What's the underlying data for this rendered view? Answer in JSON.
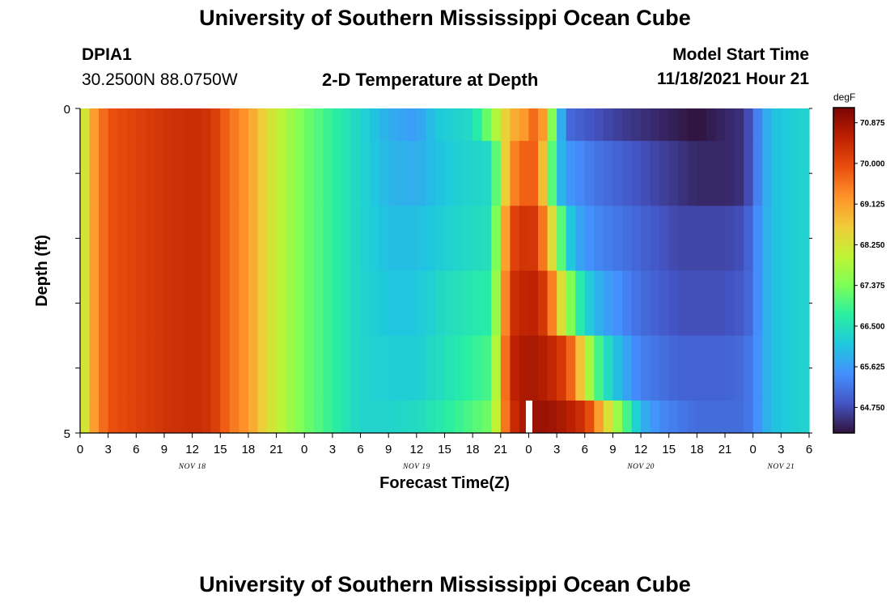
{
  "header": {
    "title": "University of Southern Mississippi Ocean Cube",
    "station_id": "DPIA1",
    "station_coords": "30.2500N  88.0750W",
    "plot_title": "2-D Temperature at Depth",
    "model_start_label": "Model Start Time",
    "model_start_value": "11/18/2021 Hour 21"
  },
  "footer": {
    "title": "University of Southern Mississippi Ocean Cube"
  },
  "chart_data": {
    "type": "heatmap",
    "title": "2-D Temperature at Depth",
    "xlabel": "Forecast Time(Z)",
    "ylabel": "Depth (ft)",
    "ylim": [
      0,
      5
    ],
    "y_tick_labels": [
      "0",
      "5"
    ],
    "x_tick_labels": [
      "0",
      "3",
      "6",
      "9",
      "12",
      "15",
      "18",
      "21",
      "0",
      "3",
      "6",
      "9",
      "12",
      "15",
      "18",
      "21",
      "0",
      "3",
      "6",
      "9",
      "12",
      "15",
      "18",
      "21",
      "0",
      "3",
      "6"
    ],
    "date_labels": [
      "NOV 18",
      "NOV 19",
      "NOV 20",
      "NOV 21"
    ],
    "x_range_hours": [
      0,
      78
    ],
    "colorbar": {
      "unit": "degF",
      "ticks": [
        "70.875",
        "70.000",
        "69.125",
        "68.250",
        "67.375",
        "66.500",
        "65.625",
        "64.750"
      ],
      "vmin": 64.2,
      "vmax": 71.2,
      "colors": [
        "#30123b",
        "#4454c4",
        "#4490fe",
        "#1fc8de",
        "#29efa2",
        "#7dff56",
        "#c1f334",
        "#f1ca3a",
        "#fe922a",
        "#ea4e0d",
        "#be2102",
        "#7a0403"
      ]
    },
    "depth_layers": [
      {
        "top": 0,
        "bottom": 0.5,
        "profile": [
          [
            0,
            67.6
          ],
          [
            1,
            68.9
          ],
          [
            3,
            69.9
          ],
          [
            6,
            70.1
          ],
          [
            9,
            70.3
          ],
          [
            12,
            70.4
          ],
          [
            14,
            70.3
          ],
          [
            16,
            69.6
          ],
          [
            18,
            69.2
          ],
          [
            20,
            68.4
          ],
          [
            22,
            67.8
          ],
          [
            24,
            67.3
          ],
          [
            27,
            66.8
          ],
          [
            30,
            66.3
          ],
          [
            33,
            65.8
          ],
          [
            36,
            65.6
          ],
          [
            38,
            66.1
          ],
          [
            42,
            66.4
          ],
          [
            44,
            67.5
          ],
          [
            46,
            68.9
          ],
          [
            48,
            69.3
          ],
          [
            49,
            70.0
          ],
          [
            50,
            68.4
          ],
          [
            51,
            66.5
          ],
          [
            52,
            65.1
          ],
          [
            54,
            64.9
          ],
          [
            58,
            64.6
          ],
          [
            62,
            64.4
          ],
          [
            66,
            64.2
          ],
          [
            69,
            64.4
          ],
          [
            71,
            64.5
          ],
          [
            72,
            65.0
          ],
          [
            73,
            65.6
          ],
          [
            74,
            66.0
          ],
          [
            76,
            66.2
          ],
          [
            78,
            66.3
          ]
        ]
      },
      {
        "top": 0.5,
        "bottom": 1.5,
        "profile": [
          [
            0,
            67.6
          ],
          [
            1,
            68.9
          ],
          [
            3,
            69.9
          ],
          [
            6,
            70.1
          ],
          [
            9,
            70.3
          ],
          [
            12,
            70.4
          ],
          [
            14,
            70.3
          ],
          [
            16,
            69.6
          ],
          [
            18,
            69.2
          ],
          [
            20,
            68.4
          ],
          [
            22,
            67.8
          ],
          [
            24,
            67.3
          ],
          [
            27,
            66.8
          ],
          [
            30,
            66.3
          ],
          [
            33,
            65.9
          ],
          [
            36,
            65.8
          ],
          [
            40,
            66.2
          ],
          [
            44,
            66.4
          ],
          [
            46,
            69.3
          ],
          [
            48,
            69.9
          ],
          [
            49,
            69.6
          ],
          [
            50,
            68.0
          ],
          [
            51,
            66.2
          ],
          [
            52,
            65.6
          ],
          [
            55,
            65.2
          ],
          [
            60,
            64.8
          ],
          [
            66,
            64.4
          ],
          [
            69,
            64.4
          ],
          [
            71,
            64.5
          ],
          [
            72,
            65.0
          ],
          [
            73,
            65.6
          ],
          [
            74,
            66.0
          ],
          [
            76,
            66.2
          ],
          [
            78,
            66.3
          ]
        ]
      },
      {
        "top": 1.5,
        "bottom": 2.5,
        "profile": [
          [
            0,
            67.6
          ],
          [
            1,
            68.9
          ],
          [
            3,
            69.9
          ],
          [
            6,
            70.1
          ],
          [
            9,
            70.3
          ],
          [
            12,
            70.4
          ],
          [
            14,
            70.3
          ],
          [
            16,
            69.6
          ],
          [
            18,
            69.2
          ],
          [
            20,
            68.4
          ],
          [
            22,
            67.8
          ],
          [
            24,
            67.3
          ],
          [
            27,
            66.8
          ],
          [
            30,
            66.3
          ],
          [
            33,
            66.0
          ],
          [
            36,
            66.0
          ],
          [
            40,
            66.3
          ],
          [
            44,
            66.5
          ],
          [
            46,
            70.0
          ],
          [
            48,
            70.4
          ],
          [
            49,
            70.1
          ],
          [
            50,
            69.0
          ],
          [
            51,
            67.8
          ],
          [
            52,
            66.4
          ],
          [
            53,
            65.8
          ],
          [
            55,
            65.4
          ],
          [
            60,
            65.0
          ],
          [
            64,
            64.7
          ],
          [
            69,
            64.7
          ],
          [
            71,
            64.8
          ],
          [
            72,
            65.2
          ],
          [
            73,
            65.7
          ],
          [
            74,
            66.0
          ],
          [
            76,
            66.2
          ],
          [
            78,
            66.3
          ]
        ]
      },
      {
        "top": 2.5,
        "bottom": 3.5,
        "profile": [
          [
            0,
            67.6
          ],
          [
            1,
            68.9
          ],
          [
            3,
            69.9
          ],
          [
            6,
            70.1
          ],
          [
            9,
            70.3
          ],
          [
            12,
            70.4
          ],
          [
            14,
            70.3
          ],
          [
            16,
            69.6
          ],
          [
            18,
            69.2
          ],
          [
            20,
            68.4
          ],
          [
            22,
            67.8
          ],
          [
            24,
            67.3
          ],
          [
            27,
            66.8
          ],
          [
            30,
            66.3
          ],
          [
            33,
            66.1
          ],
          [
            36,
            66.1
          ],
          [
            40,
            66.5
          ],
          [
            44,
            66.7
          ],
          [
            46,
            70.3
          ],
          [
            48,
            70.6
          ],
          [
            49,
            70.5
          ],
          [
            50,
            70.0
          ],
          [
            51,
            68.9
          ],
          [
            52,
            67.8
          ],
          [
            53,
            67.0
          ],
          [
            54,
            66.3
          ],
          [
            56,
            65.7
          ],
          [
            60,
            65.1
          ],
          [
            64,
            64.8
          ],
          [
            69,
            64.8
          ],
          [
            71,
            64.9
          ],
          [
            72,
            65.2
          ],
          [
            73,
            65.7
          ],
          [
            74,
            66.0
          ],
          [
            76,
            66.2
          ],
          [
            78,
            66.3
          ]
        ]
      },
      {
        "top": 3.5,
        "bottom": 4.5,
        "profile": [
          [
            0,
            67.6
          ],
          [
            1,
            68.9
          ],
          [
            3,
            69.9
          ],
          [
            6,
            70.1
          ],
          [
            9,
            70.3
          ],
          [
            12,
            70.4
          ],
          [
            14,
            70.3
          ],
          [
            16,
            69.6
          ],
          [
            18,
            69.2
          ],
          [
            20,
            68.4
          ],
          [
            22,
            67.8
          ],
          [
            24,
            67.3
          ],
          [
            27,
            66.8
          ],
          [
            30,
            66.3
          ],
          [
            33,
            66.2
          ],
          [
            36,
            66.2
          ],
          [
            40,
            66.6
          ],
          [
            44,
            67.0
          ],
          [
            46,
            70.5
          ],
          [
            48,
            70.8
          ],
          [
            50,
            70.6
          ],
          [
            52,
            70.1
          ],
          [
            53,
            69.3
          ],
          [
            54,
            68.2
          ],
          [
            55,
            67.3
          ],
          [
            56,
            66.6
          ],
          [
            58,
            65.8
          ],
          [
            60,
            65.3
          ],
          [
            64,
            65.0
          ],
          [
            69,
            65.0
          ],
          [
            71,
            65.1
          ],
          [
            72,
            65.3
          ],
          [
            73,
            65.7
          ],
          [
            74,
            66.0
          ],
          [
            76,
            66.2
          ],
          [
            78,
            66.3
          ]
        ]
      },
      {
        "top": 4.5,
        "bottom": 5,
        "profile": [
          [
            0,
            67.6
          ],
          [
            1,
            68.9
          ],
          [
            3,
            69.9
          ],
          [
            6,
            70.1
          ],
          [
            9,
            70.3
          ],
          [
            12,
            70.4
          ],
          [
            14,
            70.3
          ],
          [
            16,
            69.6
          ],
          [
            18,
            69.2
          ],
          [
            20,
            68.4
          ],
          [
            22,
            67.8
          ],
          [
            24,
            67.3
          ],
          [
            27,
            66.8
          ],
          [
            30,
            66.3
          ],
          [
            33,
            66.3
          ],
          [
            36,
            66.4
          ],
          [
            40,
            66.8
          ],
          [
            44,
            67.3
          ],
          [
            46,
            70.3
          ],
          [
            48,
            70.9
          ],
          [
            50,
            70.9
          ],
          [
            52,
            70.7
          ],
          [
            54,
            70.3
          ],
          [
            55,
            69.6
          ],
          [
            56,
            68.7
          ],
          [
            57,
            68.0
          ],
          [
            58,
            67.3
          ],
          [
            59,
            66.6
          ],
          [
            60,
            65.9
          ],
          [
            62,
            65.4
          ],
          [
            66,
            65.1
          ],
          [
            69,
            65.1
          ],
          [
            71,
            65.1
          ],
          [
            72,
            65.3
          ],
          [
            73,
            65.7
          ],
          [
            74,
            66.0
          ],
          [
            76,
            66.2
          ],
          [
            78,
            66.3
          ]
        ]
      }
    ],
    "missing_gap": {
      "x": 48,
      "depth": [
        4.5,
        5
      ]
    }
  }
}
